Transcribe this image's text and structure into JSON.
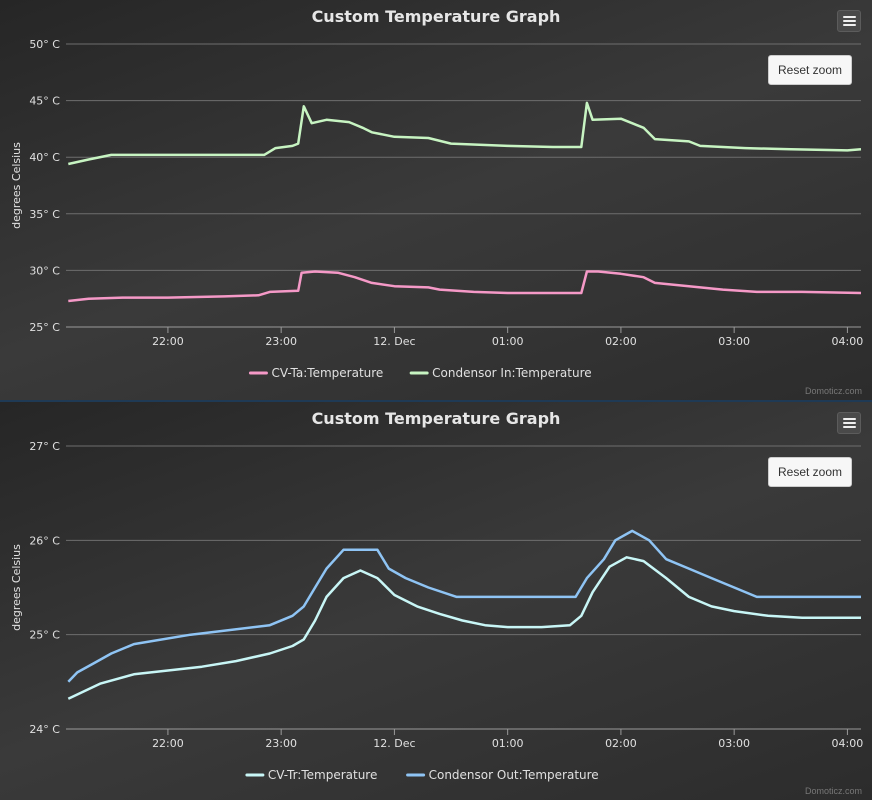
{
  "chart_data": [
    {
      "type": "line",
      "title": "Custom Temperature Graph",
      "ylabel": "degrees Celsius",
      "ylim": [
        25,
        50
      ],
      "yticks": [
        25,
        30,
        35,
        40,
        45,
        50
      ],
      "ytick_suffix": "° C",
      "xticks": [
        "22:00",
        "23:00",
        "12. Dec",
        "01:00",
        "02:00",
        "03:00",
        "04:00"
      ],
      "xtick_hours": [
        22,
        23,
        24,
        25,
        26,
        27,
        28
      ],
      "xlim": [
        21.1,
        28.12
      ],
      "legend_position": "bottom-center",
      "grid": true,
      "reset_label": "Reset zoom",
      "credit": "Domoticz.com",
      "series": [
        {
          "name": "CV-Ta:Temperature",
          "color": "#f599c7",
          "points": [
            [
              21.12,
              27.3
            ],
            [
              21.3,
              27.5
            ],
            [
              21.6,
              27.6
            ],
            [
              22.0,
              27.6
            ],
            [
              22.5,
              27.7
            ],
            [
              22.8,
              27.8
            ],
            [
              22.9,
              28.1
            ],
            [
              23.15,
              28.2
            ],
            [
              23.18,
              29.8
            ],
            [
              23.3,
              29.9
            ],
            [
              23.5,
              29.8
            ],
            [
              23.65,
              29.4
            ],
            [
              23.8,
              28.9
            ],
            [
              24.0,
              28.6
            ],
            [
              24.3,
              28.5
            ],
            [
              24.4,
              28.3
            ],
            [
              24.7,
              28.1
            ],
            [
              25.0,
              28.0
            ],
            [
              25.4,
              28.0
            ],
            [
              25.65,
              28.0
            ],
            [
              25.7,
              29.9
            ],
            [
              25.8,
              29.9
            ],
            [
              26.0,
              29.7
            ],
            [
              26.2,
              29.4
            ],
            [
              26.3,
              28.9
            ],
            [
              26.6,
              28.6
            ],
            [
              26.9,
              28.3
            ],
            [
              27.2,
              28.1
            ],
            [
              27.6,
              28.1
            ],
            [
              28.12,
              28.0
            ]
          ]
        },
        {
          "name": "Condensor In:Temperature",
          "color": "#c7f4c2",
          "points": [
            [
              21.12,
              39.4
            ],
            [
              21.3,
              39.8
            ],
            [
              21.5,
              40.2
            ],
            [
              21.8,
              40.2
            ],
            [
              22.2,
              40.2
            ],
            [
              22.6,
              40.2
            ],
            [
              22.85,
              40.2
            ],
            [
              22.95,
              40.8
            ],
            [
              23.1,
              41.0
            ],
            [
              23.15,
              41.2
            ],
            [
              23.2,
              44.5
            ],
            [
              23.27,
              43.0
            ],
            [
              23.4,
              43.3
            ],
            [
              23.6,
              43.1
            ],
            [
              23.72,
              42.6
            ],
            [
              23.8,
              42.2
            ],
            [
              24.0,
              41.8
            ],
            [
              24.3,
              41.7
            ],
            [
              24.5,
              41.2
            ],
            [
              25.0,
              41.0
            ],
            [
              25.4,
              40.9
            ],
            [
              25.65,
              40.9
            ],
            [
              25.7,
              44.8
            ],
            [
              25.75,
              43.3
            ],
            [
              26.0,
              43.4
            ],
            [
              26.2,
              42.6
            ],
            [
              26.3,
              41.6
            ],
            [
              26.6,
              41.4
            ],
            [
              26.7,
              41.0
            ],
            [
              27.1,
              40.8
            ],
            [
              27.5,
              40.7
            ],
            [
              28.0,
              40.6
            ],
            [
              28.12,
              40.7
            ]
          ]
        }
      ]
    },
    {
      "type": "line",
      "title": "Custom Temperature Graph",
      "ylabel": "degrees Celsius",
      "ylim": [
        24,
        27
      ],
      "yticks": [
        24,
        25,
        26,
        27
      ],
      "ytick_suffix": "° C",
      "xticks": [
        "22:00",
        "23:00",
        "12. Dec",
        "01:00",
        "02:00",
        "03:00",
        "04:00"
      ],
      "xtick_hours": [
        22,
        23,
        24,
        25,
        26,
        27,
        28
      ],
      "xlim": [
        21.1,
        28.12
      ],
      "legend_position": "bottom-center",
      "grid": true,
      "reset_label": "Reset zoom",
      "credit": "Domoticz.com",
      "series": [
        {
          "name": "CV-Tr:Temperature",
          "color": "#c8f6f6",
          "points": [
            [
              21.12,
              24.32
            ],
            [
              21.4,
              24.48
            ],
            [
              21.7,
              24.58
            ],
            [
              22.0,
              24.62
            ],
            [
              22.3,
              24.66
            ],
            [
              22.6,
              24.72
            ],
            [
              22.9,
              24.8
            ],
            [
              23.1,
              24.88
            ],
            [
              23.2,
              24.95
            ],
            [
              23.3,
              25.15
            ],
            [
              23.4,
              25.4
            ],
            [
              23.55,
              25.6
            ],
            [
              23.7,
              25.68
            ],
            [
              23.85,
              25.6
            ],
            [
              24.0,
              25.42
            ],
            [
              24.2,
              25.3
            ],
            [
              24.4,
              25.22
            ],
            [
              24.6,
              25.15
            ],
            [
              24.8,
              25.1
            ],
            [
              25.0,
              25.08
            ],
            [
              25.3,
              25.08
            ],
            [
              25.55,
              25.1
            ],
            [
              25.65,
              25.2
            ],
            [
              25.75,
              25.45
            ],
            [
              25.9,
              25.72
            ],
            [
              26.05,
              25.82
            ],
            [
              26.2,
              25.78
            ],
            [
              26.4,
              25.6
            ],
            [
              26.6,
              25.4
            ],
            [
              26.8,
              25.3
            ],
            [
              27.0,
              25.25
            ],
            [
              27.3,
              25.2
            ],
            [
              27.6,
              25.18
            ],
            [
              28.12,
              25.18
            ]
          ]
        },
        {
          "name": "Condensor Out:Temperature",
          "color": "#8fc4f4",
          "points": [
            [
              21.12,
              24.5
            ],
            [
              21.2,
              24.6
            ],
            [
              21.35,
              24.7
            ],
            [
              21.5,
              24.8
            ],
            [
              21.7,
              24.9
            ],
            [
              22.2,
              25.0
            ],
            [
              22.9,
              25.1
            ],
            [
              23.1,
              25.2
            ],
            [
              23.2,
              25.3
            ],
            [
              23.3,
              25.5
            ],
            [
              23.4,
              25.7
            ],
            [
              23.55,
              25.9
            ],
            [
              23.85,
              25.9
            ],
            [
              23.95,
              25.7
            ],
            [
              24.1,
              25.6
            ],
            [
              24.3,
              25.5
            ],
            [
              24.55,
              25.4
            ],
            [
              25.0,
              25.4
            ],
            [
              25.6,
              25.4
            ],
            [
              25.7,
              25.6
            ],
            [
              25.85,
              25.8
            ],
            [
              25.95,
              26.0
            ],
            [
              26.1,
              26.1
            ],
            [
              26.25,
              26.0
            ],
            [
              26.4,
              25.8
            ],
            [
              26.6,
              25.7
            ],
            [
              26.8,
              25.6
            ],
            [
              27.0,
              25.5
            ],
            [
              27.2,
              25.4
            ],
            [
              27.5,
              25.4
            ],
            [
              28.12,
              25.4
            ]
          ]
        }
      ]
    }
  ]
}
